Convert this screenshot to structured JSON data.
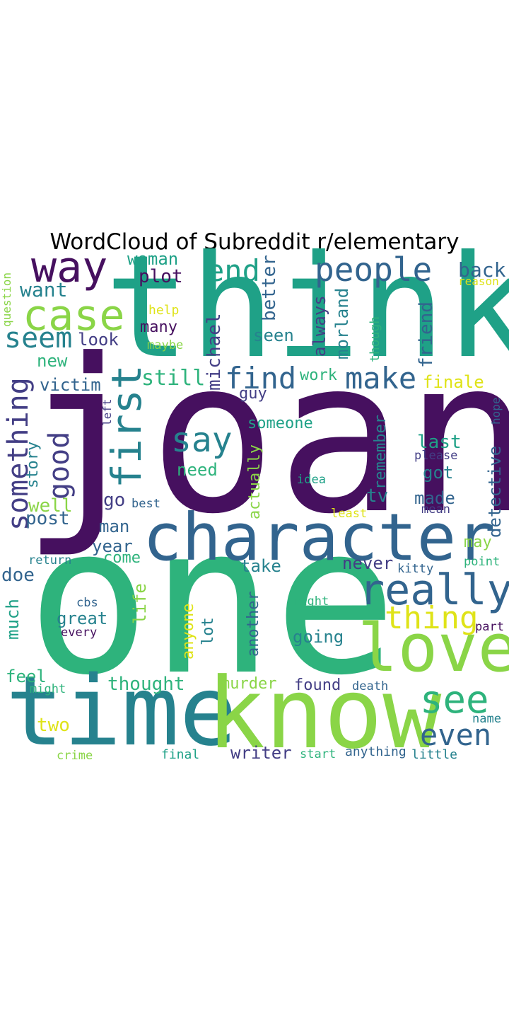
{
  "title": "WordCloud of Subreddit r/elementary",
  "palette": {
    "purple": "#46105f",
    "indigo": "#433e85",
    "blue": "#32648e",
    "teal": "#26828e",
    "green": "#1fa187",
    "emerald": "#2eb37c",
    "lime": "#8ad547",
    "yellow": "#dfe318"
  },
  "words": {
    "joan": "joan",
    "one": "one",
    "think": "think",
    "time": "time",
    "know": "know",
    "character": "character",
    "love": "love",
    "way": "way",
    "case": "case",
    "really": "really",
    "people": "people",
    "first": "first",
    "something": "something",
    "see": "see",
    "end": "end",
    "find": "find",
    "make": "make",
    "say": "say",
    "good": "good",
    "seem": "seem",
    "thing": "thing",
    "even": "even",
    "back": "back",
    "want": "want",
    "woman": "woman",
    "plot": "plot",
    "help": "help",
    "many": "many",
    "maybe": "maybe",
    "look": "look",
    "new": "new",
    "victim": "victim",
    "still": "still",
    "michael": "michael",
    "better": "better",
    "seen": "seen",
    "always": "always",
    "morland": "morland",
    "though": "though",
    "friend": "friend",
    "reason": "reason",
    "question": "question",
    "finale": "finale",
    "work": "work",
    "guy": "guy",
    "hope": "hope",
    "left": "left",
    "someone": "someone",
    "last": "last",
    "please": "please",
    "remember": "remember",
    "story": "story",
    "need": "need",
    "actually": "actually",
    "got": "got",
    "idea": "idea",
    "detective": "detective",
    "well": "well",
    "go": "go",
    "best": "best",
    "tv": "tv",
    "made": "made",
    "mean": "mean",
    "least": "least",
    "post": "post",
    "man": "man",
    "year": "year",
    "may": "may",
    "come": "come",
    "return": "return",
    "doe": "doe",
    "take": "take",
    "never": "never",
    "kitty": "kitty",
    "point": "point",
    "much": "much",
    "cbs": "cbs",
    "life": "life",
    "anyone": "anyone",
    "lot": "lot",
    "another": "another",
    "right": "right",
    "great": "great",
    "every": "every",
    "going": "going",
    "part": "part",
    "feel": "feel",
    "might": "might",
    "thought": "thought",
    "murder": "murder",
    "found": "found",
    "death": "death",
    "two": "two",
    "name": "name",
    "crime": "crime",
    "final": "final",
    "writer": "writer",
    "start": "start",
    "anything": "anything",
    "little": "little"
  }
}
